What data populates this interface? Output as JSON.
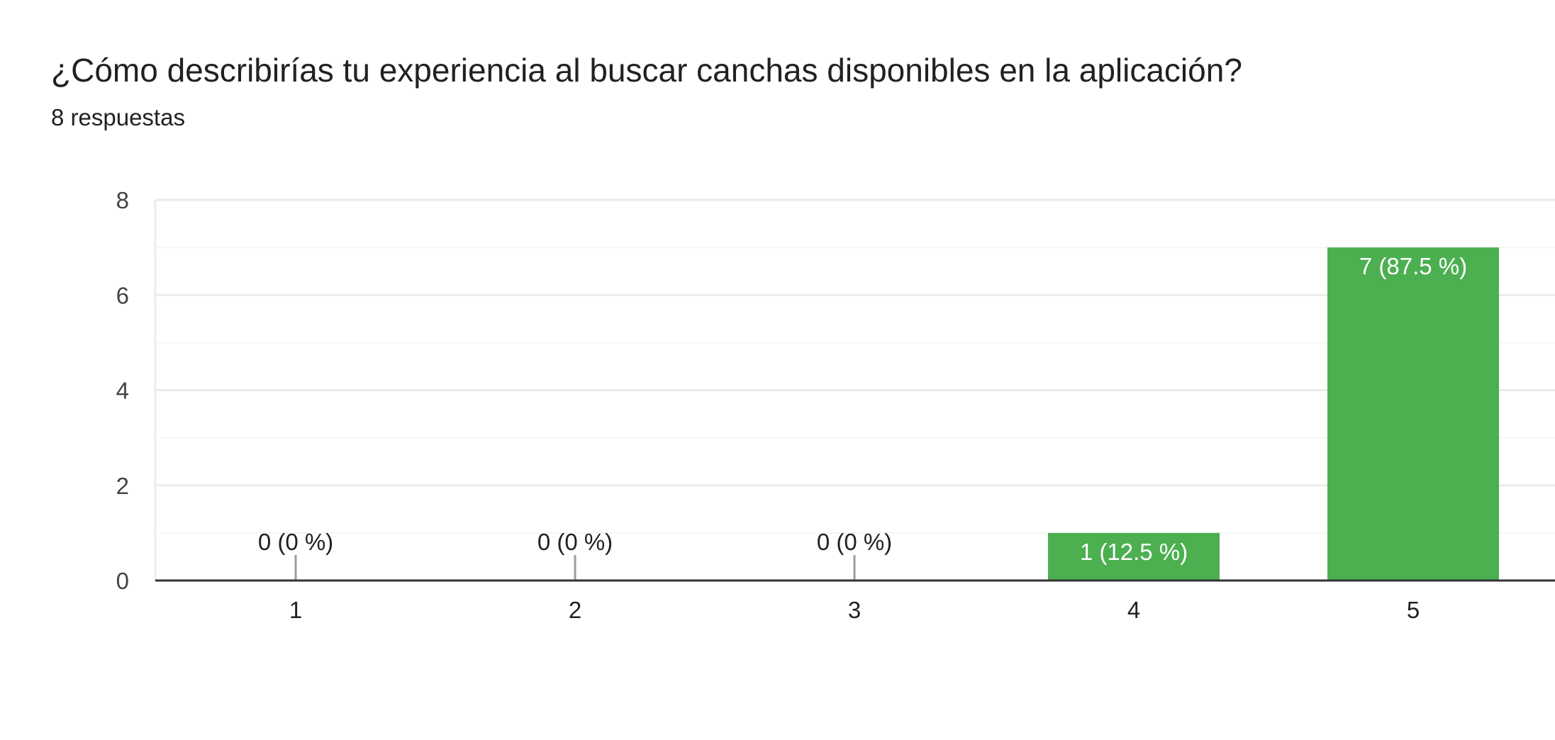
{
  "question": {
    "title": "¿Cómo describirías tu experiencia al buscar canchas disponibles en la aplicación?",
    "response_count": "8 respuestas"
  },
  "colors": {
    "bar": "#4caf50",
    "grid": "#ebebeb",
    "grid_minor": "#f5f5f5",
    "axis": "#333333",
    "tick_text": "#444444",
    "label_text": "#202124",
    "label_inside": "#ffffff",
    "stub": "#9e9e9e"
  },
  "chart_data": {
    "type": "bar",
    "title": "¿Cómo describirías tu experiencia al buscar canchas disponibles en la aplicación?",
    "categories": [
      "1",
      "2",
      "3",
      "4",
      "5"
    ],
    "values": [
      0,
      0,
      0,
      1,
      7
    ],
    "data_labels": [
      "0 (0 %)",
      "0 (0 %)",
      "0 (0 %)",
      "1 (12.5 %)",
      "7 (87.5 %)"
    ],
    "ylim": [
      0,
      8
    ],
    "yticks": [
      0,
      2,
      4,
      6,
      8
    ],
    "ytick_labels": [
      "0",
      "2",
      "4",
      "6",
      "8"
    ],
    "minor_gridlines": [
      1,
      3,
      5,
      7
    ],
    "grid": true,
    "legend": "none",
    "xlabel": "",
    "ylabel": ""
  }
}
